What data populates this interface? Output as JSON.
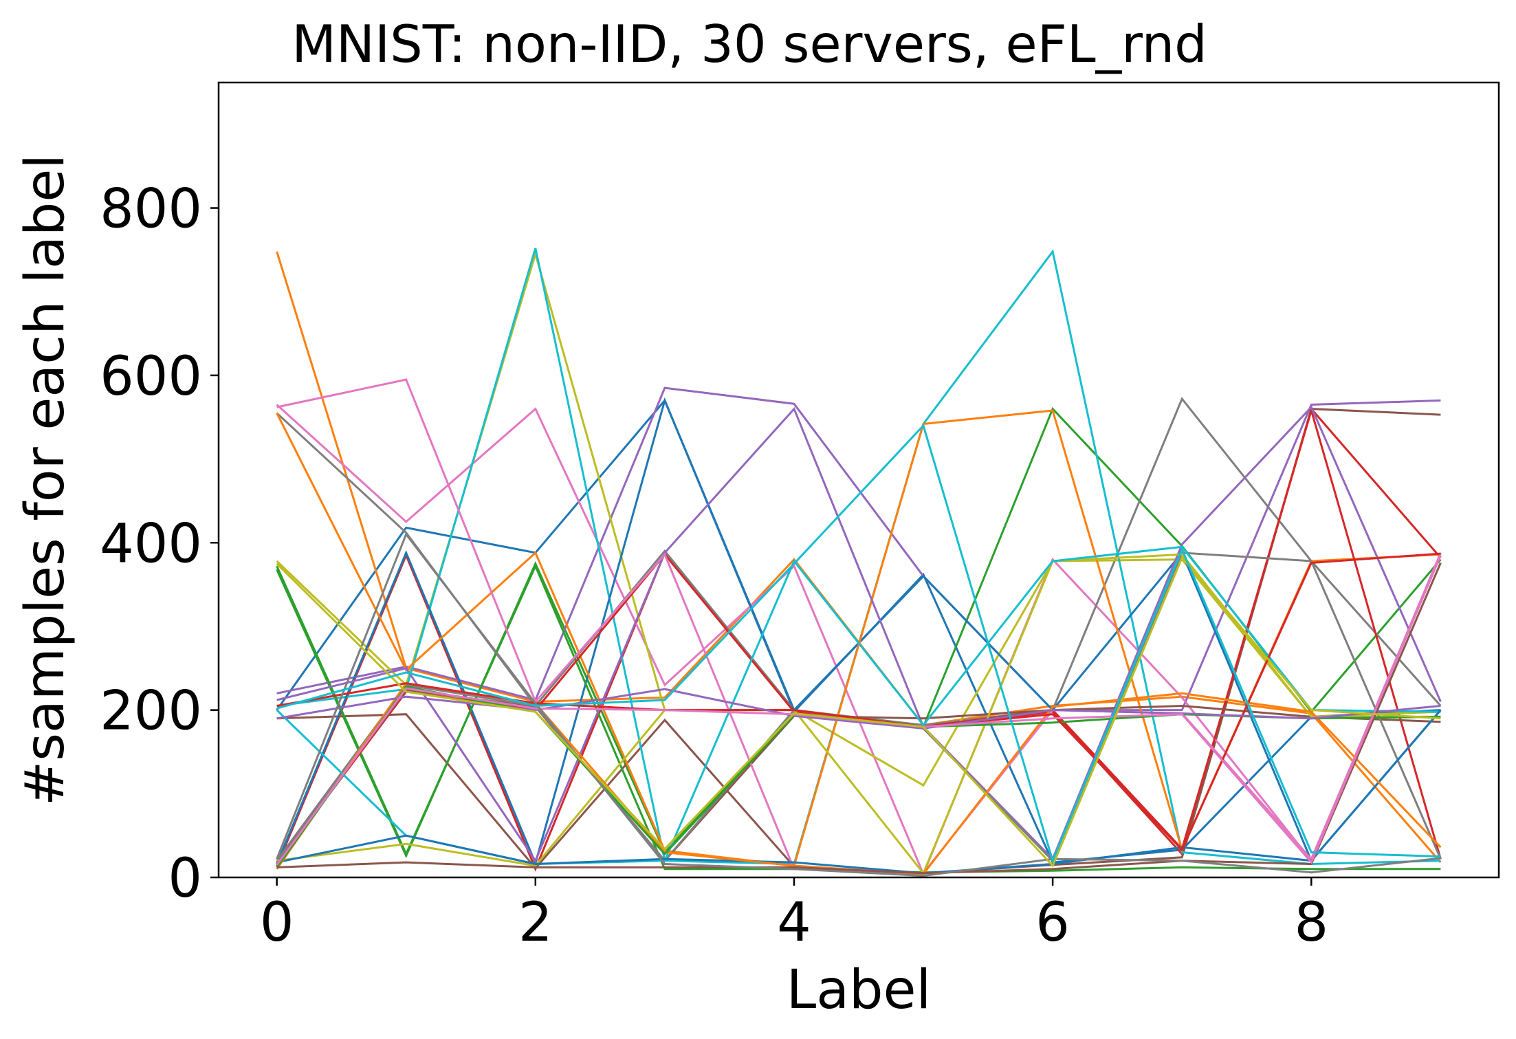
{
  "chart_data": {
    "type": "line",
    "title": "MNIST: non-IID, 30 servers, eFL_rnd",
    "xlabel": "Label",
    "ylabel": "#samples for each label",
    "xlim": [
      -0.45,
      9.45
    ],
    "ylim": [
      0,
      950
    ],
    "x_ticks": [
      0,
      2,
      4,
      6,
      8
    ],
    "x_tick_labels": [
      "0",
      "2",
      "4",
      "6",
      "8"
    ],
    "y_ticks": [
      0,
      200,
      400,
      600,
      800
    ],
    "y_tick_labels": [
      "0",
      "200",
      "400",
      "600",
      "800"
    ],
    "grid": false,
    "legend": "none",
    "x": [
      0,
      1,
      2,
      3,
      4,
      5,
      6,
      7,
      8,
      9
    ],
    "series": [
      {
        "color": "#1f77b4",
        "values": [
          200,
          418,
          388,
          570,
          198,
          362,
          18,
          33,
          192,
          200
        ]
      },
      {
        "color": "#ff7f0e",
        "values": [
          748,
          250,
          210,
          215,
          380,
          182,
          205,
          216,
          196,
          18
        ]
      },
      {
        "color": "#2ca02c",
        "values": [
          368,
          26,
          375,
          30,
          196,
          180,
          560,
          396,
          198,
          380
        ]
      },
      {
        "color": "#d62728",
        "values": [
          13,
          385,
          10,
          388,
          200,
          180,
          198,
          28,
          560,
          382
        ]
      },
      {
        "color": "#9467bd",
        "values": [
          220,
          252,
          212,
          585,
          566,
          360,
          200,
          200,
          565,
          570
        ]
      },
      {
        "color": "#8c564b",
        "values": [
          190,
          195,
          11,
          188,
          13,
          5,
          15,
          24,
          560,
          553
        ]
      },
      {
        "color": "#e377c2",
        "values": [
          565,
          425,
          560,
          230,
          372,
          4,
          380,
          215,
          20,
          388
        ]
      },
      {
        "color": "#7f7f7f",
        "values": [
          555,
          412,
          205,
          390,
          200,
          182,
          200,
          572,
          378,
          205
        ]
      },
      {
        "color": "#bcbd22",
        "values": [
          378,
          230,
          745,
          200,
          200,
          110,
          378,
          380,
          192,
          192
        ]
      },
      {
        "color": "#17becf",
        "values": [
          205,
          225,
          752,
          20,
          16,
          542,
          748,
          30,
          16,
          20
        ]
      },
      {
        "color": "#1f77b4",
        "values": [
          16,
          388,
          17,
          570,
          200,
          360,
          200,
          388,
          20,
          200
        ]
      },
      {
        "color": "#ff7f0e",
        "values": [
          555,
          248,
          388,
          32,
          14,
          542,
          558,
          33,
          378,
          386
        ]
      },
      {
        "color": "#2ca02c",
        "values": [
          372,
          28,
          372,
          10,
          10,
          6,
          8,
          12,
          10,
          10
        ]
      },
      {
        "color": "#d62728",
        "values": [
          16,
          222,
          200,
          386,
          198,
          180,
          200,
          34,
          558,
          22
        ]
      },
      {
        "color": "#9467bd",
        "values": [
          212,
          250,
          20,
          388,
          560,
          180,
          22,
          398,
          562,
          210
        ]
      },
      {
        "color": "#8c564b",
        "values": [
          18,
          224,
          204,
          20,
          193,
          190,
          200,
          205,
          192,
          186
        ]
      },
      {
        "color": "#e377c2",
        "values": [
          562,
          595,
          210,
          386,
          10,
          5,
          200,
          196,
          22,
          385
        ]
      },
      {
        "color": "#7f7f7f",
        "values": [
          20,
          230,
          205,
          20,
          200,
          178,
          20,
          388,
          378,
          22
        ]
      },
      {
        "color": "#bcbd22",
        "values": [
          20,
          40,
          14,
          200,
          200,
          5,
          378,
          386,
          192,
          198
        ]
      },
      {
        "color": "#17becf",
        "values": [
          200,
          50,
          16,
          20,
          378,
          182,
          378,
          395,
          200,
          198
        ]
      },
      {
        "color": "#1f77b4",
        "values": [
          18,
          50,
          16,
          22,
          18,
          5,
          16,
          36,
          20,
          200
        ]
      },
      {
        "color": "#ff7f0e",
        "values": [
          10,
          232,
          208,
          30,
          14,
          4,
          204,
          220,
          198,
          36
        ]
      },
      {
        "color": "#2ca02c",
        "values": [
          12,
          228,
          198,
          28,
          194,
          180,
          185,
          195,
          190,
          192
        ]
      },
      {
        "color": "#d62728",
        "values": [
          205,
          232,
          208,
          200,
          200,
          180,
          195,
          33,
          376,
          387
        ]
      },
      {
        "color": "#9467bd",
        "values": [
          190,
          216,
          200,
          225,
          193,
          178,
          200,
          196,
          190,
          205
        ]
      },
      {
        "color": "#8c564b",
        "values": [
          12,
          18,
          12,
          12,
          12,
          5,
          10,
          20,
          16,
          376
        ]
      },
      {
        "color": "#e377c2",
        "values": [
          15,
          226,
          202,
          200,
          195,
          180,
          190,
          195,
          18,
          385
        ]
      },
      {
        "color": "#7f7f7f",
        "values": [
          22,
          410,
          208,
          16,
          10,
          2,
          22,
          20,
          6,
          23
        ]
      },
      {
        "color": "#bcbd22",
        "values": [
          375,
          222,
          198,
          34,
          196,
          180,
          14,
          382,
          200,
          190
        ]
      },
      {
        "color": "#17becf",
        "values": [
          202,
          245,
          205,
          212,
          375,
          540,
          20,
          392,
          30,
          25
        ]
      }
    ]
  }
}
